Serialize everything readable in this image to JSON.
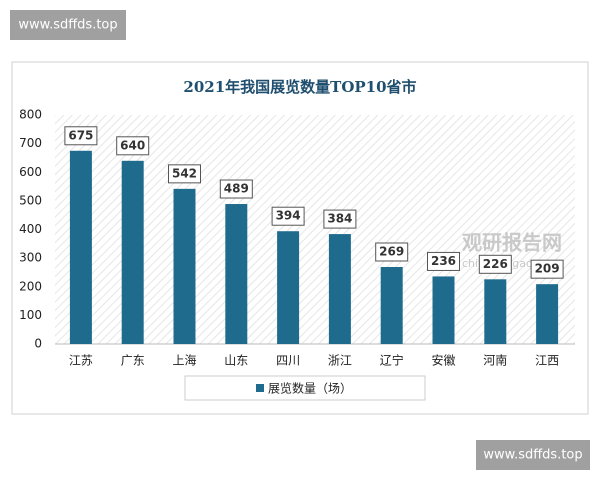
{
  "watermarks": {
    "top": "www.sdffds.top",
    "bottom": "www.sdffds.top",
    "logo": "观研报告网",
    "logo_url": "chinabaogao.com"
  },
  "chart_data": {
    "type": "bar",
    "title": "2021年我国展览数量TOP10省市",
    "categories": [
      "江苏",
      "广东",
      "上海",
      "山东",
      "四川",
      "浙江",
      "辽宁",
      "安徽",
      "河南",
      "江西"
    ],
    "series": [
      {
        "name": "展览数量（场）",
        "color": "#1f6b8e",
        "values": [
          675,
          640,
          542,
          489,
          394,
          384,
          269,
          236,
          226,
          209
        ]
      }
    ],
    "ylim": [
      0,
      800
    ],
    "yticks": [
      0,
      100,
      200,
      300,
      400,
      500,
      600,
      700,
      800
    ],
    "grid": false,
    "legend": "bottom"
  }
}
